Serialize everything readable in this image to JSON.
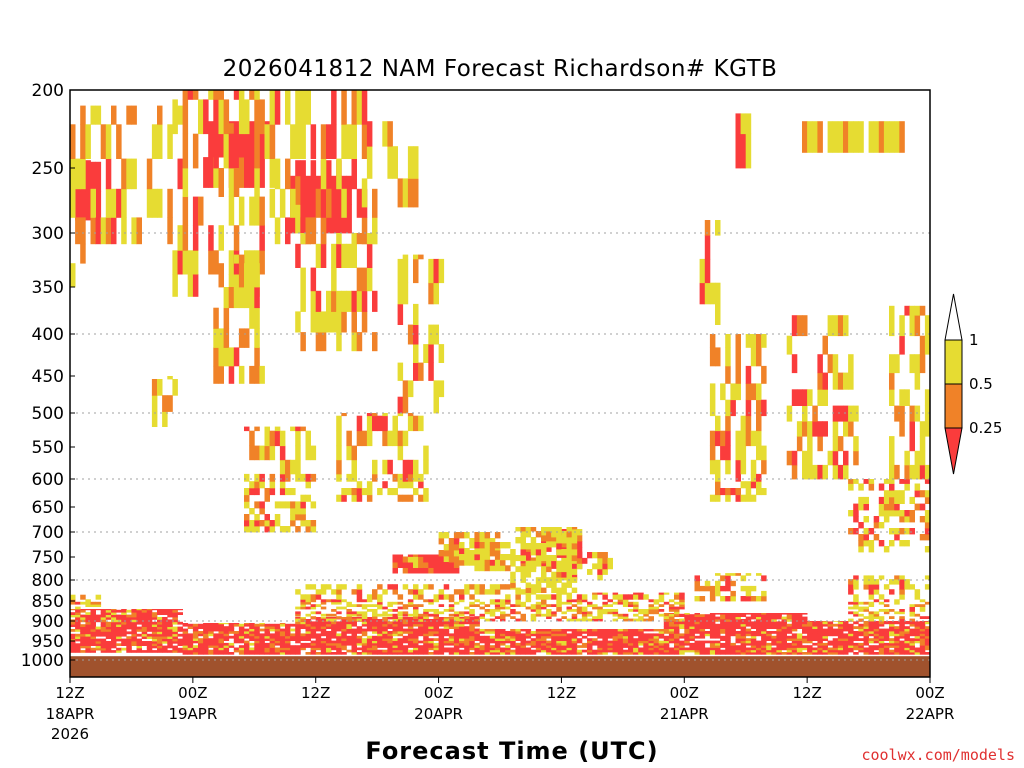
{
  "chart_data": {
    "type": "heatmap",
    "title": "2026041812 NAM Forecast Richardson# KGTB",
    "xlabel": "Forecast Time (UTC)",
    "ylabel": "",
    "credit": "coolwx.com/models",
    "y_axis": {
      "scale": "pressure (hPa), inverted",
      "range": [
        1000,
        200
      ],
      "tick_labels": [
        "200",
        "250",
        "300",
        "350",
        "400",
        "450",
        "500",
        "550",
        "600",
        "650",
        "700",
        "750",
        "800",
        "850",
        "900",
        "950",
        "1000"
      ],
      "gridlines_dotted": [
        "300",
        "400",
        "500",
        "600",
        "700",
        "800",
        "900",
        "1000"
      ]
    },
    "x_axis": {
      "range_hours": [
        0,
        84
      ],
      "ticks": [
        {
          "hour": 0,
          "top": "12Z",
          "bottom": "18APR",
          "extra": "2026"
        },
        {
          "hour": 12,
          "top": "00Z",
          "bottom": "19APR"
        },
        {
          "hour": 24,
          "top": "12Z",
          "bottom": ""
        },
        {
          "hour": 36,
          "top": "00Z",
          "bottom": "20APR"
        },
        {
          "hour": 48,
          "top": "12Z",
          "bottom": ""
        },
        {
          "hour": 60,
          "top": "00Z",
          "bottom": "21APR"
        },
        {
          "hour": 72,
          "top": "12Z",
          "bottom": ""
        },
        {
          "hour": 84,
          "top": "00Z",
          "bottom": "22APR"
        }
      ]
    },
    "colorbar": {
      "levels": [
        "1",
        "0.5",
        "0.25"
      ],
      "bins": [
        {
          "label": "> 1",
          "color": "#ffffff"
        },
        {
          "label": "0.5 - 1",
          "color": "#e6dc32"
        },
        {
          "label": "0.25 - 0.5",
          "color": "#f08228"
        },
        {
          "label": "< 0.25",
          "color": "#fa3c3c"
        }
      ]
    },
    "colors": {
      "yellow": "#e6dc32",
      "orange": "#f08228",
      "red": "#fa3c3c",
      "ground": "#a0522d"
    },
    "ground_band": {
      "from_p": 990,
      "to_p": 1040,
      "color": "#a0522d"
    },
    "regions": [
      {
        "cls": "low",
        "t": [
          0,
          11
        ],
        "p": [
          980,
          870
        ]
      },
      {
        "cls": "low",
        "t": [
          11,
          22
        ],
        "p": [
          985,
          905
        ]
      },
      {
        "cls": "low",
        "t": [
          22,
          40
        ],
        "p": [
          985,
          890
        ]
      },
      {
        "cls": "low",
        "t": [
          40,
          58
        ],
        "p": [
          985,
          920
        ]
      },
      {
        "cls": "low",
        "t": [
          58,
          72
        ],
        "p": [
          985,
          880
        ]
      },
      {
        "cls": "low",
        "t": [
          72,
          84
        ],
        "p": [
          985,
          900
        ]
      },
      {
        "cls": "mixed",
        "t": [
          0,
          3
        ],
        "p": [
          870,
          835
        ]
      },
      {
        "cls": "mixed",
        "t": [
          22,
          48
        ],
        "p": [
          900,
          810
        ]
      },
      {
        "cls": "mixed",
        "t": [
          48,
          60
        ],
        "p": [
          900,
          830
        ]
      },
      {
        "cls": "mixed",
        "t": [
          61,
          68
        ],
        "p": [
          850,
          785
        ]
      },
      {
        "cls": "mixed",
        "t": [
          76,
          84
        ],
        "p": [
          900,
          790
        ]
      },
      {
        "cls": "low",
        "t": [
          31.5,
          38
        ],
        "p": [
          785,
          745
        ]
      },
      {
        "cls": "mid",
        "t": [
          36,
          42
        ],
        "p": [
          760,
          700
        ]
      },
      {
        "cls": "low",
        "t": [
          44,
          50
        ],
        "p": [
          775,
          730
        ]
      },
      {
        "cls": "mid",
        "t": [
          46,
          50
        ],
        "p": [
          730,
          690
        ]
      },
      {
        "cls": "mixed",
        "t": [
          48,
          53
        ],
        "p": [
          800,
          740
        ]
      },
      {
        "cls": "high",
        "t": [
          43,
          49.5
        ],
        "p": [
          830,
          690
        ]
      },
      {
        "cls": "high",
        "t": [
          38,
          43
        ],
        "p": [
          780,
          720
        ]
      },
      {
        "cls": "mixed",
        "t": [
          76,
          84
        ],
        "p": [
          740,
          600
        ]
      },
      {
        "cls": "mixed",
        "t": [
          80,
          84
        ],
        "p": [
          600,
          370
        ]
      },
      {
        "cls": "mixed",
        "t": [
          26,
          35
        ],
        "p": [
          640,
          500
        ]
      },
      {
        "cls": "mixed",
        "t": [
          32,
          36.5
        ],
        "p": [
          500,
          320
        ]
      },
      {
        "cls": "mixed",
        "t": [
          17,
          24
        ],
        "p": [
          700,
          520
        ]
      },
      {
        "cls": "mixed",
        "t": [
          8,
          11
        ],
        "p": [
          520,
          450
        ]
      },
      {
        "cls": "mixed",
        "t": [
          62.5,
          68
        ],
        "p": [
          640,
          400
        ]
      },
      {
        "cls": "mixed",
        "t": [
          70,
          77
        ],
        "p": [
          600,
          380
        ]
      },
      {
        "cls": "mixed",
        "t": [
          61.5,
          63.5
        ],
        "p": [
          390,
          290
        ]
      },
      {
        "cls": "high",
        "t": [
          71.5,
          82
        ],
        "p": [
          240,
          220
        ]
      },
      {
        "cls": "high",
        "t": [
          65,
          67
        ],
        "p": [
          250,
          215
        ]
      },
      {
        "cls": "red",
        "t": [
          13,
          20
        ],
        "p": [
          265,
          220
        ]
      },
      {
        "cls": "red",
        "t": [
          21.5,
          27.5
        ],
        "p": [
          300,
          245
        ]
      },
      {
        "cls": "red",
        "t": [
          0,
          3
        ],
        "p": [
          290,
          245
        ]
      },
      {
        "cls": "mixed",
        "t": [
          0,
          11
        ],
        "p": [
          310,
          210
        ]
      },
      {
        "cls": "mixed",
        "t": [
          10,
          19
        ],
        "p": [
          360,
          200
        ]
      },
      {
        "cls": "mixed",
        "t": [
          19,
          30
        ],
        "p": [
          310,
          200
        ]
      },
      {
        "cls": "mixed",
        "t": [
          22,
          30
        ],
        "p": [
          420,
          300
        ]
      },
      {
        "cls": "mixed",
        "t": [
          28.5,
          34
        ],
        "p": [
          280,
          220
        ]
      },
      {
        "cls": "mixed",
        "t": [
          14,
          19
        ],
        "p": [
          460,
          320
        ]
      },
      {
        "cls": "mixed",
        "t": [
          0,
          2
        ],
        "p": [
          350,
          310
        ]
      }
    ]
  }
}
